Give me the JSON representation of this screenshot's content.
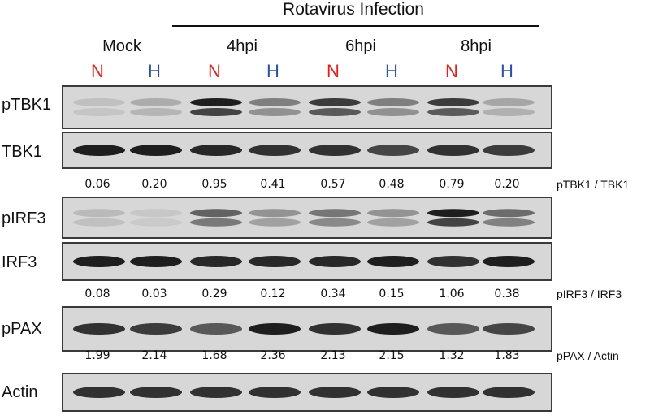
{
  "colors": {
    "normal": "#e0211b",
    "high": "#2a53a8"
  },
  "header": {
    "infection_title": "Rotavirus Infection",
    "groups": [
      "Mock",
      "4hpi",
      "6hpi",
      "8hpi"
    ],
    "lanes": [
      "N",
      "H",
      "N",
      "H",
      "N",
      "H",
      "N",
      "H"
    ]
  },
  "blots": [
    {
      "label": "pTBK1",
      "band_intensity": [
        0.12,
        0.22,
        0.95,
        0.45,
        0.8,
        0.45,
        0.8,
        0.25
      ]
    },
    {
      "label": "TBK1",
      "band_intensity": [
        0.95,
        0.95,
        0.9,
        0.85,
        0.85,
        0.75,
        0.85,
        0.8
      ]
    },
    {
      "label": "pIRF3",
      "band_intensity": [
        0.15,
        0.08,
        0.6,
        0.35,
        0.5,
        0.35,
        0.95,
        0.55
      ]
    },
    {
      "label": "IRF3",
      "band_intensity": [
        0.95,
        0.95,
        0.9,
        0.9,
        0.9,
        0.95,
        0.85,
        0.95
      ]
    },
    {
      "label": "pPAX",
      "band_intensity": [
        0.85,
        0.8,
        0.65,
        0.95,
        0.85,
        0.95,
        0.65,
        0.75
      ]
    },
    {
      "label": "Actin",
      "band_intensity": [
        0.85,
        0.85,
        0.85,
        0.85,
        0.85,
        0.85,
        0.85,
        0.85
      ]
    }
  ],
  "ratios": [
    {
      "name": "pTBK1 / TBK1",
      "values": [
        "0.06",
        "0.20",
        "0.95",
        "0.41",
        "0.57",
        "0.48",
        "0.79",
        "0.20"
      ]
    },
    {
      "name": "pIRF3 / IRF3",
      "values": [
        "0.08",
        "0.03",
        "0.29",
        "0.12",
        "0.34",
        "0.15",
        "1.06",
        "0.38"
      ]
    },
    {
      "name": "pPAX / Actin",
      "values": [
        "1.99",
        "2.14",
        "1.68",
        "2.36",
        "2.13",
        "2.15",
        "1.32",
        "1.83"
      ]
    }
  ]
}
